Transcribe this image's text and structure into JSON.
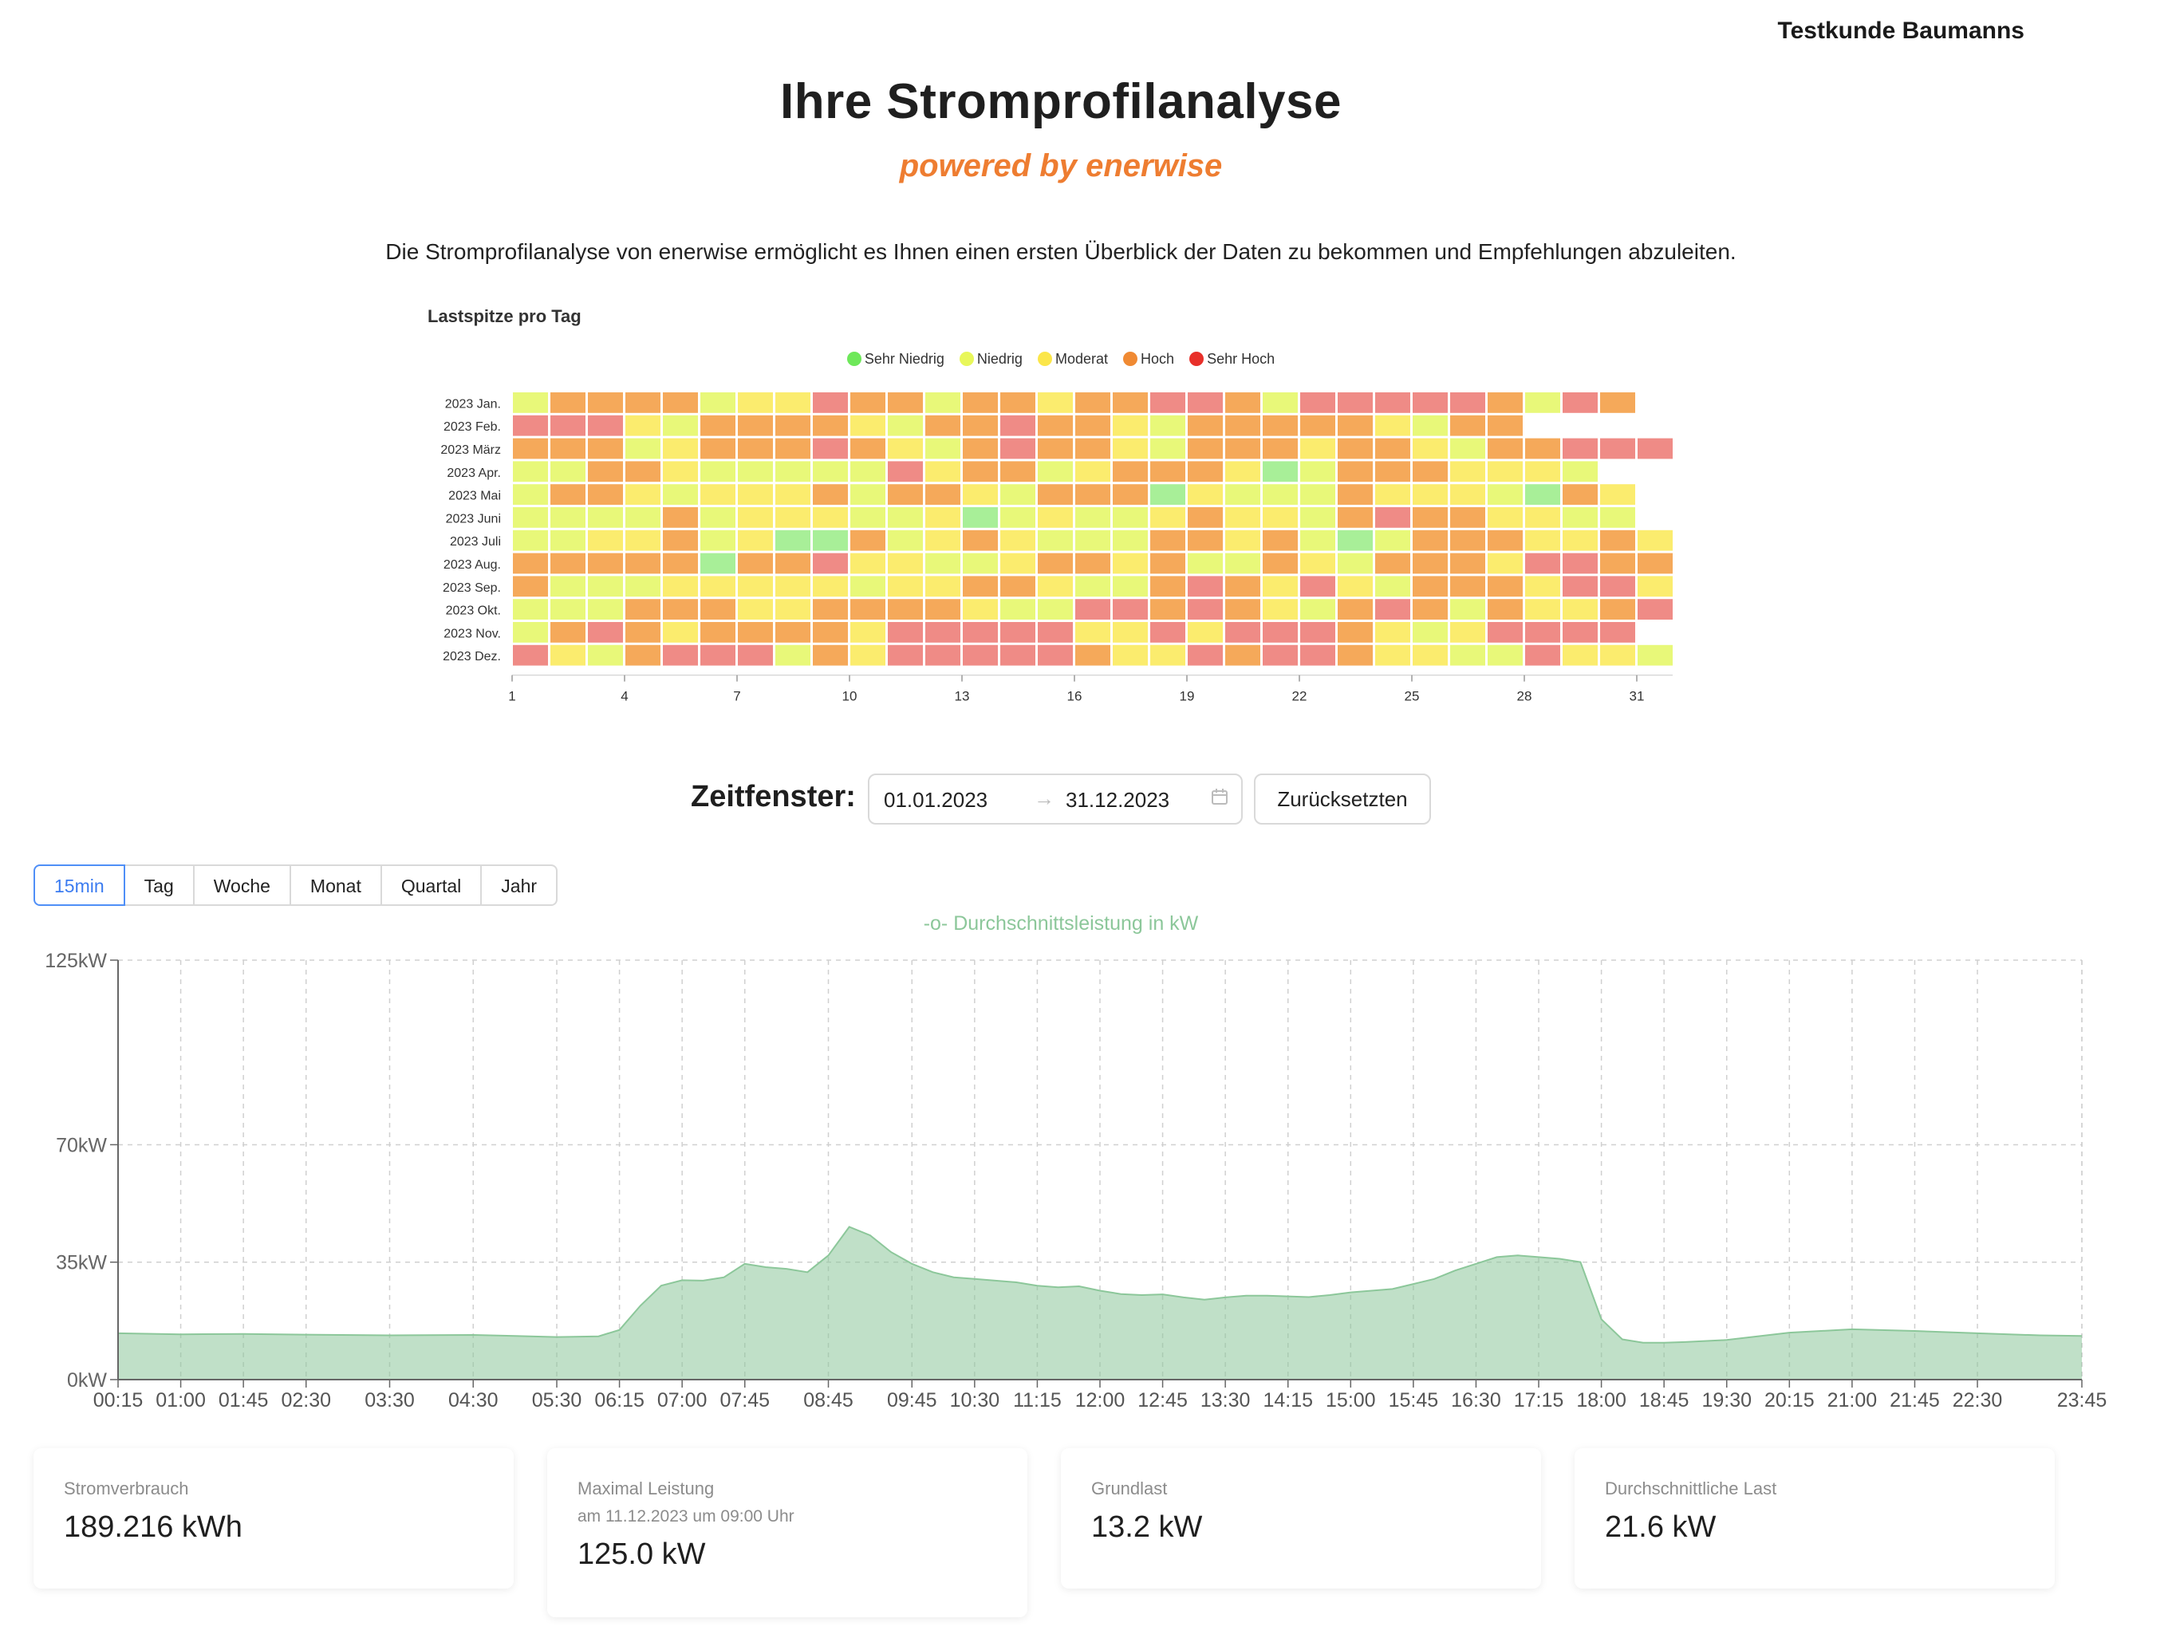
{
  "header": {
    "customer": "Testkunde Baumanns",
    "title": "Ihre Stromprofilanalyse",
    "subtitle": "powered by enerwise",
    "intro": "Die Stromprofilanalyse von enerwise ermöglicht es Ihnen einen ersten Überblick der Daten zu bekommen und Empfehlungen abzuleiten."
  },
  "heatmap": {
    "title": "Lastspitze pro Tag",
    "legend": [
      {
        "label": "Sehr Niedrig",
        "color": "#6ee85a"
      },
      {
        "label": "Niedrig",
        "color": "#e8f75a"
      },
      {
        "label": "Moderat",
        "color": "#fbe64a"
      },
      {
        "label": "Hoch",
        "color": "#f08a33"
      },
      {
        "label": "Sehr Hoch",
        "color": "#e8302a"
      }
    ],
    "cell_colors": [
      "#a8ef98",
      "#e8f879",
      "#fbec6e",
      "#f5a95a",
      "#ef8b86"
    ],
    "months": [
      "2023 Jan.",
      "2023 Feb.",
      "2023 März",
      "2023 Apr.",
      "2023 Mai",
      "2023 Juni",
      "2023 Juli",
      "2023 Aug.",
      "2023 Sep.",
      "2023 Okt.",
      "2023 Nov.",
      "2023 Dez."
    ],
    "ticks": [
      "1",
      "4",
      "7",
      "10",
      "13",
      "16",
      "19",
      "22",
      "25",
      "28",
      "31"
    ],
    "levels": [
      [
        1,
        3,
        3,
        3,
        3,
        1,
        2,
        2,
        4,
        3,
        3,
        1,
        3,
        3,
        2,
        3,
        3,
        4,
        4,
        3,
        1,
        4,
        4,
        4,
        4,
        4,
        3,
        1,
        4,
        3
      ],
      [
        4,
        4,
        4,
        2,
        1,
        3,
        3,
        3,
        3,
        2,
        1,
        3,
        3,
        4,
        3,
        3,
        2,
        1,
        3,
        3,
        3,
        3,
        3,
        2,
        1,
        3,
        3
      ],
      [
        3,
        3,
        3,
        1,
        2,
        3,
        3,
        3,
        4,
        3,
        2,
        1,
        3,
        4,
        3,
        3,
        2,
        1,
        3,
        3,
        3,
        2,
        3,
        3,
        2,
        1,
        3,
        3,
        4,
        4,
        4
      ],
      [
        1,
        1,
        3,
        3,
        2,
        1,
        1,
        1,
        1,
        1,
        4,
        2,
        3,
        3,
        1,
        2,
        3,
        3,
        3,
        2,
        0,
        1,
        3,
        3,
        3,
        2,
        2,
        2,
        1
      ],
      [
        1,
        3,
        3,
        2,
        1,
        2,
        2,
        2,
        3,
        1,
        3,
        3,
        2,
        1,
        3,
        3,
        3,
        0,
        2,
        1,
        1,
        1,
        3,
        2,
        2,
        2,
        1,
        0,
        3,
        2
      ],
      [
        1,
        1,
        1,
        1,
        3,
        1,
        2,
        2,
        2,
        1,
        1,
        2,
        0,
        1,
        2,
        1,
        1,
        2,
        3,
        2,
        2,
        1,
        3,
        4,
        3,
        3,
        2,
        2,
        1,
        1
      ],
      [
        1,
        1,
        2,
        2,
        3,
        1,
        2,
        0,
        0,
        3,
        1,
        2,
        3,
        2,
        1,
        1,
        1,
        3,
        3,
        2,
        3,
        1,
        0,
        1,
        3,
        3,
        3,
        2,
        2,
        3,
        2
      ],
      [
        3,
        3,
        3,
        3,
        3,
        0,
        3,
        3,
        4,
        2,
        2,
        1,
        1,
        2,
        3,
        3,
        2,
        3,
        1,
        1,
        3,
        2,
        1,
        3,
        3,
        3,
        2,
        4,
        4,
        3,
        3
      ],
      [
        3,
        1,
        1,
        1,
        2,
        2,
        2,
        2,
        2,
        1,
        2,
        2,
        3,
        3,
        2,
        1,
        1,
        3,
        4,
        3,
        2,
        4,
        2,
        1,
        3,
        3,
        3,
        2,
        4,
        4,
        2
      ],
      [
        1,
        1,
        1,
        3,
        3,
        3,
        2,
        2,
        3,
        3,
        3,
        3,
        2,
        1,
        1,
        4,
        4,
        3,
        4,
        3,
        2,
        1,
        3,
        4,
        3,
        1,
        3,
        2,
        2,
        3,
        4
      ],
      [
        1,
        3,
        4,
        3,
        2,
        3,
        3,
        3,
        3,
        2,
        4,
        4,
        4,
        4,
        4,
        2,
        2,
        4,
        2,
        4,
        4,
        4,
        3,
        2,
        1,
        2,
        4,
        4,
        4,
        4
      ],
      [
        4,
        2,
        1,
        3,
        4,
        4,
        4,
        1,
        3,
        2,
        4,
        4,
        4,
        4,
        4,
        3,
        2,
        2,
        4,
        3,
        4,
        4,
        3,
        2,
        2,
        1,
        1,
        4,
        2,
        2,
        1
      ]
    ]
  },
  "timeframe": {
    "label": "Zeitfenster:",
    "from": "01.01.2023",
    "arrow": "→",
    "to": "31.12.2023",
    "reset_label": "Zurücksetzten"
  },
  "tabs": [
    {
      "label": "15min",
      "active": true
    },
    {
      "label": "Tag",
      "active": false
    },
    {
      "label": "Woche",
      "active": false
    },
    {
      "label": "Monat",
      "active": false
    },
    {
      "label": "Quartal",
      "active": false
    },
    {
      "label": "Jahr",
      "active": false
    }
  ],
  "chart_data": {
    "type": "area",
    "legend_marker": "-o-",
    "series": [
      {
        "name": "Durchschnittsleistung in kW",
        "color": "#8cc79a"
      }
    ],
    "ylim": [
      0,
      125
    ],
    "ytick_values": [
      0,
      35,
      70,
      125
    ],
    "ytick_labels": [
      "0kW",
      "35kW",
      "70kW",
      "125kW"
    ],
    "xtick_labels": [
      "00:15",
      "01:00",
      "01:45",
      "02:30",
      "03:30",
      "04:30",
      "05:30",
      "06:15",
      "07:00",
      "07:45",
      "08:45",
      "09:45",
      "10:30",
      "11:15",
      "12:00",
      "12:45",
      "13:30",
      "14:15",
      "15:00",
      "15:45",
      "16:30",
      "17:15",
      "18:00",
      "18:45",
      "19:30",
      "20:15",
      "21:00",
      "21:45",
      "22:30",
      "23:45"
    ],
    "xtick_minutes": [
      15,
      60,
      105,
      150,
      210,
      270,
      330,
      375,
      420,
      465,
      525,
      585,
      630,
      675,
      720,
      765,
      810,
      855,
      900,
      945,
      990,
      1035,
      1080,
      1125,
      1170,
      1215,
      1260,
      1305,
      1350,
      1425
    ],
    "x_minutes": [
      15,
      60,
      105,
      150,
      210,
      270,
      300,
      330,
      360,
      375,
      390,
      405,
      420,
      435,
      450,
      465,
      480,
      495,
      510,
      525,
      540,
      555,
      570,
      585,
      600,
      615,
      630,
      645,
      660,
      675,
      690,
      705,
      720,
      735,
      750,
      765,
      780,
      795,
      810,
      825,
      840,
      855,
      870,
      885,
      900,
      915,
      930,
      945,
      960,
      975,
      990,
      1005,
      1020,
      1035,
      1050,
      1065,
      1080,
      1095,
      1110,
      1125,
      1140,
      1170,
      1215,
      1260,
      1305,
      1350,
      1395,
      1425
    ],
    "values": [
      13.8,
      13.5,
      13.6,
      13.4,
      13.2,
      13.3,
      13.0,
      12.7,
      12.9,
      14.8,
      22.0,
      28.0,
      29.6,
      29.5,
      30.5,
      34.5,
      33.5,
      33.0,
      32.0,
      37.0,
      45.5,
      43.0,
      38.0,
      34.5,
      32.0,
      30.5,
      30.0,
      29.5,
      29.0,
      28.0,
      27.5,
      27.8,
      26.5,
      25.5,
      25.2,
      25.4,
      24.5,
      23.8,
      24.5,
      25.0,
      25.0,
      24.8,
      24.6,
      25.2,
      26.0,
      26.5,
      27.0,
      28.5,
      30.0,
      32.5,
      34.5,
      36.5,
      37.0,
      36.5,
      36.0,
      35.0,
      18.0,
      12.0,
      11.0,
      11.0,
      11.2,
      11.8,
      14.0,
      15.0,
      14.5,
      13.8,
      13.2,
      13.0
    ]
  },
  "cards": [
    {
      "label": "Stromverbrauch",
      "sub": "",
      "value": "189.216 kWh"
    },
    {
      "label": "Maximal Leistung",
      "sub": "am 11.12.2023 um 09:00 Uhr",
      "value": "125.0 kW"
    },
    {
      "label": "Grundlast",
      "sub": "",
      "value": "13.2 kW"
    },
    {
      "label": "Durchschnittliche Last",
      "sub": "",
      "value": "21.6 kW"
    }
  ]
}
